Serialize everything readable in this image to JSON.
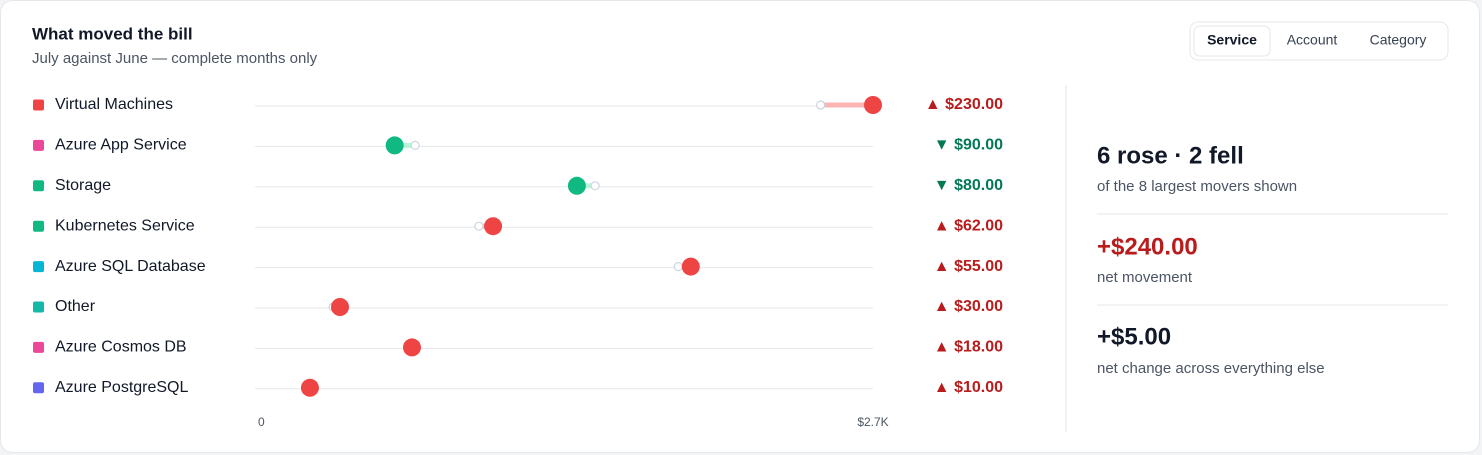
{
  "header": {
    "title": "What moved the bill",
    "subtitle": "July against June — complete months only"
  },
  "tabs": {
    "items": [
      "Service",
      "Account",
      "Category"
    ],
    "active": 0
  },
  "chart_data": {
    "type": "dumbbell",
    "categories": [
      "Virtual Machines",
      "Azure App Service",
      "Storage",
      "Kubernetes Service",
      "Azure SQL Database",
      "Other",
      "Azure Cosmos DB",
      "Azure PostgreSQL"
    ],
    "category_colors": [
      "#ef4444",
      "#ec4899",
      "#10b981",
      "#10b981",
      "#06b6d4",
      "#14b8a6",
      "#ec4899",
      "#6366f1"
    ],
    "series": [
      {
        "values": [
          2470,
          690,
          1480,
          970,
          1845,
          330,
          658,
          218
        ]
      },
      {
        "values": [
          2700,
          600,
          1400,
          1032,
          1900,
          360,
          676,
          228
        ]
      }
    ],
    "changes": {
      "values": [
        230,
        -90,
        -80,
        62,
        55,
        30,
        18,
        10
      ],
      "value_labels": [
        "▲ $230.00",
        "▼ $90.00",
        "▼ $80.00",
        "▲ $62.00",
        "▲ $55.00",
        "▲ $30.00",
        "▲ $18.00",
        "▲ $10.00"
      ]
    },
    "rise_color": "#ef4444",
    "fall_color": "#10b981",
    "rise_label_color": "#b91c1c",
    "fall_label_color": "#047857",
    "xlim": [
      0,
      2700
    ],
    "xticks": [
      0,
      {
        "value": 2700,
        "label": "$2.7K"
      }
    ]
  },
  "summary": {
    "headline": "6 rose · 2 fell",
    "headline_note": "of the 8 largest movers shown",
    "net": "+$240.00",
    "net_note": "net movement",
    "rest": "+$5.00",
    "rest_note": "net change across everything else"
  }
}
